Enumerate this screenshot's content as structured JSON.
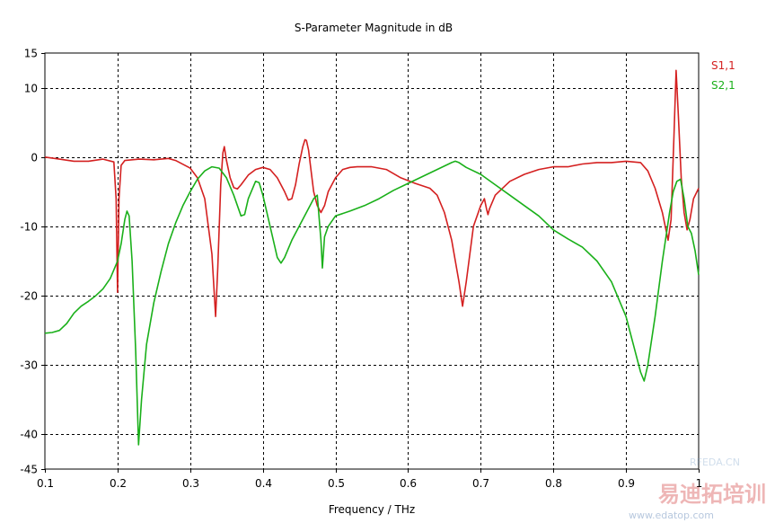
{
  "chart_data": {
    "type": "line",
    "title": "S-Parameter Magnitude in dB",
    "xlabel": "Frequency / THz",
    "ylabel": "",
    "xlim": [
      0.1,
      1.0
    ],
    "ylim": [
      -45,
      15
    ],
    "xticks": [
      "0.1",
      "0.2",
      "0.3",
      "0.4",
      "0.5",
      "0.6",
      "0.7",
      "0.8",
      "0.9",
      "1"
    ],
    "yticks": [
      "15",
      "10",
      "0",
      "-10",
      "-20",
      "-30",
      "-40",
      "-45"
    ],
    "grid": true,
    "legend_position": "top-right",
    "series": [
      {
        "name": "S1,1",
        "color": "#d42020",
        "points": [
          [
            0.1,
            0.0
          ],
          [
            0.12,
            -0.3
          ],
          [
            0.14,
            -0.6
          ],
          [
            0.16,
            -0.6
          ],
          [
            0.18,
            -0.3
          ],
          [
            0.195,
            -0.7
          ],
          [
            0.198,
            -6.0
          ],
          [
            0.2,
            -19.5
          ],
          [
            0.202,
            -6.0
          ],
          [
            0.205,
            -1.2
          ],
          [
            0.21,
            -0.5
          ],
          [
            0.23,
            -0.3
          ],
          [
            0.25,
            -0.4
          ],
          [
            0.27,
            -0.2
          ],
          [
            0.28,
            -0.5
          ],
          [
            0.3,
            -1.6
          ],
          [
            0.31,
            -3.0
          ],
          [
            0.32,
            -6.0
          ],
          [
            0.33,
            -14.0
          ],
          [
            0.335,
            -23.0
          ],
          [
            0.338,
            -16.0
          ],
          [
            0.342,
            -4.0
          ],
          [
            0.345,
            0.6
          ],
          [
            0.347,
            1.5
          ],
          [
            0.35,
            -0.5
          ],
          [
            0.355,
            -3.0
          ],
          [
            0.36,
            -4.4
          ],
          [
            0.365,
            -4.6
          ],
          [
            0.37,
            -4.0
          ],
          [
            0.38,
            -2.6
          ],
          [
            0.39,
            -1.8
          ],
          [
            0.4,
            -1.5
          ],
          [
            0.41,
            -1.8
          ],
          [
            0.42,
            -3.0
          ],
          [
            0.43,
            -5.0
          ],
          [
            0.435,
            -6.2
          ],
          [
            0.44,
            -6.0
          ],
          [
            0.445,
            -4.0
          ],
          [
            0.45,
            -1.0
          ],
          [
            0.455,
            1.5
          ],
          [
            0.458,
            2.5
          ],
          [
            0.46,
            2.4
          ],
          [
            0.463,
            1.0
          ],
          [
            0.467,
            -2.5
          ],
          [
            0.47,
            -5.0
          ],
          [
            0.475,
            -7.0
          ],
          [
            0.48,
            -8.0
          ],
          [
            0.485,
            -7.0
          ],
          [
            0.49,
            -5.0
          ],
          [
            0.5,
            -3.0
          ],
          [
            0.51,
            -1.8
          ],
          [
            0.52,
            -1.5
          ],
          [
            0.53,
            -1.4
          ],
          [
            0.55,
            -1.4
          ],
          [
            0.57,
            -1.8
          ],
          [
            0.59,
            -3.0
          ],
          [
            0.61,
            -3.8
          ],
          [
            0.63,
            -4.5
          ],
          [
            0.64,
            -5.5
          ],
          [
            0.65,
            -8.0
          ],
          [
            0.66,
            -12.0
          ],
          [
            0.67,
            -18.0
          ],
          [
            0.675,
            -21.5
          ],
          [
            0.68,
            -18.0
          ],
          [
            0.685,
            -14.0
          ],
          [
            0.69,
            -10.0
          ],
          [
            0.7,
            -7.0
          ],
          [
            0.705,
            -6.0
          ],
          [
            0.708,
            -7.5
          ],
          [
            0.71,
            -8.3
          ],
          [
            0.712,
            -7.5
          ],
          [
            0.72,
            -5.5
          ],
          [
            0.74,
            -3.5
          ],
          [
            0.76,
            -2.5
          ],
          [
            0.78,
            -1.8
          ],
          [
            0.8,
            -1.4
          ],
          [
            0.82,
            -1.4
          ],
          [
            0.84,
            -1.0
          ],
          [
            0.86,
            -0.8
          ],
          [
            0.88,
            -0.8
          ],
          [
            0.9,
            -0.6
          ],
          [
            0.91,
            -0.7
          ],
          [
            0.92,
            -0.8
          ],
          [
            0.93,
            -2.0
          ],
          [
            0.94,
            -4.5
          ],
          [
            0.95,
            -8.0
          ],
          [
            0.958,
            -12.0
          ],
          [
            0.962,
            -9.0
          ],
          [
            0.966,
            3.0
          ],
          [
            0.969,
            12.5
          ],
          [
            0.972,
            6.0
          ],
          [
            0.976,
            -3.0
          ],
          [
            0.98,
            -8.0
          ],
          [
            0.984,
            -10.5
          ],
          [
            0.988,
            -9.0
          ],
          [
            0.993,
            -6.0
          ],
          [
            1.0,
            -4.5
          ]
        ]
      },
      {
        "name": "S2,1",
        "color": "#1ab01a",
        "points": [
          [
            0.1,
            -25.4
          ],
          [
            0.11,
            -25.3
          ],
          [
            0.12,
            -25.0
          ],
          [
            0.13,
            -24.0
          ],
          [
            0.14,
            -22.5
          ],
          [
            0.15,
            -21.5
          ],
          [
            0.16,
            -20.8
          ],
          [
            0.17,
            -20.0
          ],
          [
            0.18,
            -19.0
          ],
          [
            0.19,
            -17.5
          ],
          [
            0.2,
            -15.0
          ],
          [
            0.205,
            -12.5
          ],
          [
            0.21,
            -9.0
          ],
          [
            0.213,
            -7.8
          ],
          [
            0.216,
            -8.5
          ],
          [
            0.22,
            -15.0
          ],
          [
            0.225,
            -28.0
          ],
          [
            0.229,
            -41.5
          ],
          [
            0.233,
            -35.0
          ],
          [
            0.24,
            -27.0
          ],
          [
            0.25,
            -21.0
          ],
          [
            0.26,
            -16.5
          ],
          [
            0.27,
            -12.5
          ],
          [
            0.28,
            -9.5
          ],
          [
            0.29,
            -7.0
          ],
          [
            0.3,
            -5.0
          ],
          [
            0.31,
            -3.2
          ],
          [
            0.32,
            -2.0
          ],
          [
            0.33,
            -1.4
          ],
          [
            0.34,
            -1.6
          ],
          [
            0.35,
            -3.0
          ],
          [
            0.36,
            -5.5
          ],
          [
            0.37,
            -8.5
          ],
          [
            0.375,
            -8.3
          ],
          [
            0.38,
            -6.0
          ],
          [
            0.39,
            -3.5
          ],
          [
            0.395,
            -3.7
          ],
          [
            0.4,
            -5.5
          ],
          [
            0.41,
            -10.0
          ],
          [
            0.42,
            -14.5
          ],
          [
            0.425,
            -15.3
          ],
          [
            0.43,
            -14.5
          ],
          [
            0.44,
            -12.0
          ],
          [
            0.45,
            -10.0
          ],
          [
            0.46,
            -8.0
          ],
          [
            0.47,
            -6.0
          ],
          [
            0.475,
            -5.5
          ],
          [
            0.48,
            -12.0
          ],
          [
            0.482,
            -16.0
          ],
          [
            0.485,
            -11.5
          ],
          [
            0.49,
            -10.0
          ],
          [
            0.5,
            -8.5
          ],
          [
            0.52,
            -7.8
          ],
          [
            0.54,
            -7.0
          ],
          [
            0.56,
            -6.0
          ],
          [
            0.58,
            -4.8
          ],
          [
            0.6,
            -3.8
          ],
          [
            0.62,
            -2.8
          ],
          [
            0.64,
            -1.8
          ],
          [
            0.66,
            -0.8
          ],
          [
            0.665,
            -0.6
          ],
          [
            0.67,
            -0.8
          ],
          [
            0.68,
            -1.5
          ],
          [
            0.7,
            -2.5
          ],
          [
            0.72,
            -4.0
          ],
          [
            0.74,
            -5.5
          ],
          [
            0.76,
            -7.0
          ],
          [
            0.78,
            -8.5
          ],
          [
            0.8,
            -10.5
          ],
          [
            0.82,
            -11.8
          ],
          [
            0.84,
            -13.0
          ],
          [
            0.86,
            -15.0
          ],
          [
            0.88,
            -18.0
          ],
          [
            0.9,
            -23.0
          ],
          [
            0.91,
            -27.0
          ],
          [
            0.92,
            -31.0
          ],
          [
            0.925,
            -32.3
          ],
          [
            0.93,
            -30.0
          ],
          [
            0.94,
            -23.0
          ],
          [
            0.95,
            -15.0
          ],
          [
            0.96,
            -8.0
          ],
          [
            0.965,
            -5.0
          ],
          [
            0.97,
            -3.5
          ],
          [
            0.975,
            -3.2
          ],
          [
            0.98,
            -6.0
          ],
          [
            0.985,
            -10.0
          ],
          [
            0.99,
            -11.0
          ],
          [
            0.995,
            -13.5
          ],
          [
            1.0,
            -17.0
          ]
        ]
      }
    ]
  },
  "watermark": {
    "line1": "www.edatop.com",
    "line2": "RFEDA.CN",
    "line3": "易迪拓培训"
  }
}
